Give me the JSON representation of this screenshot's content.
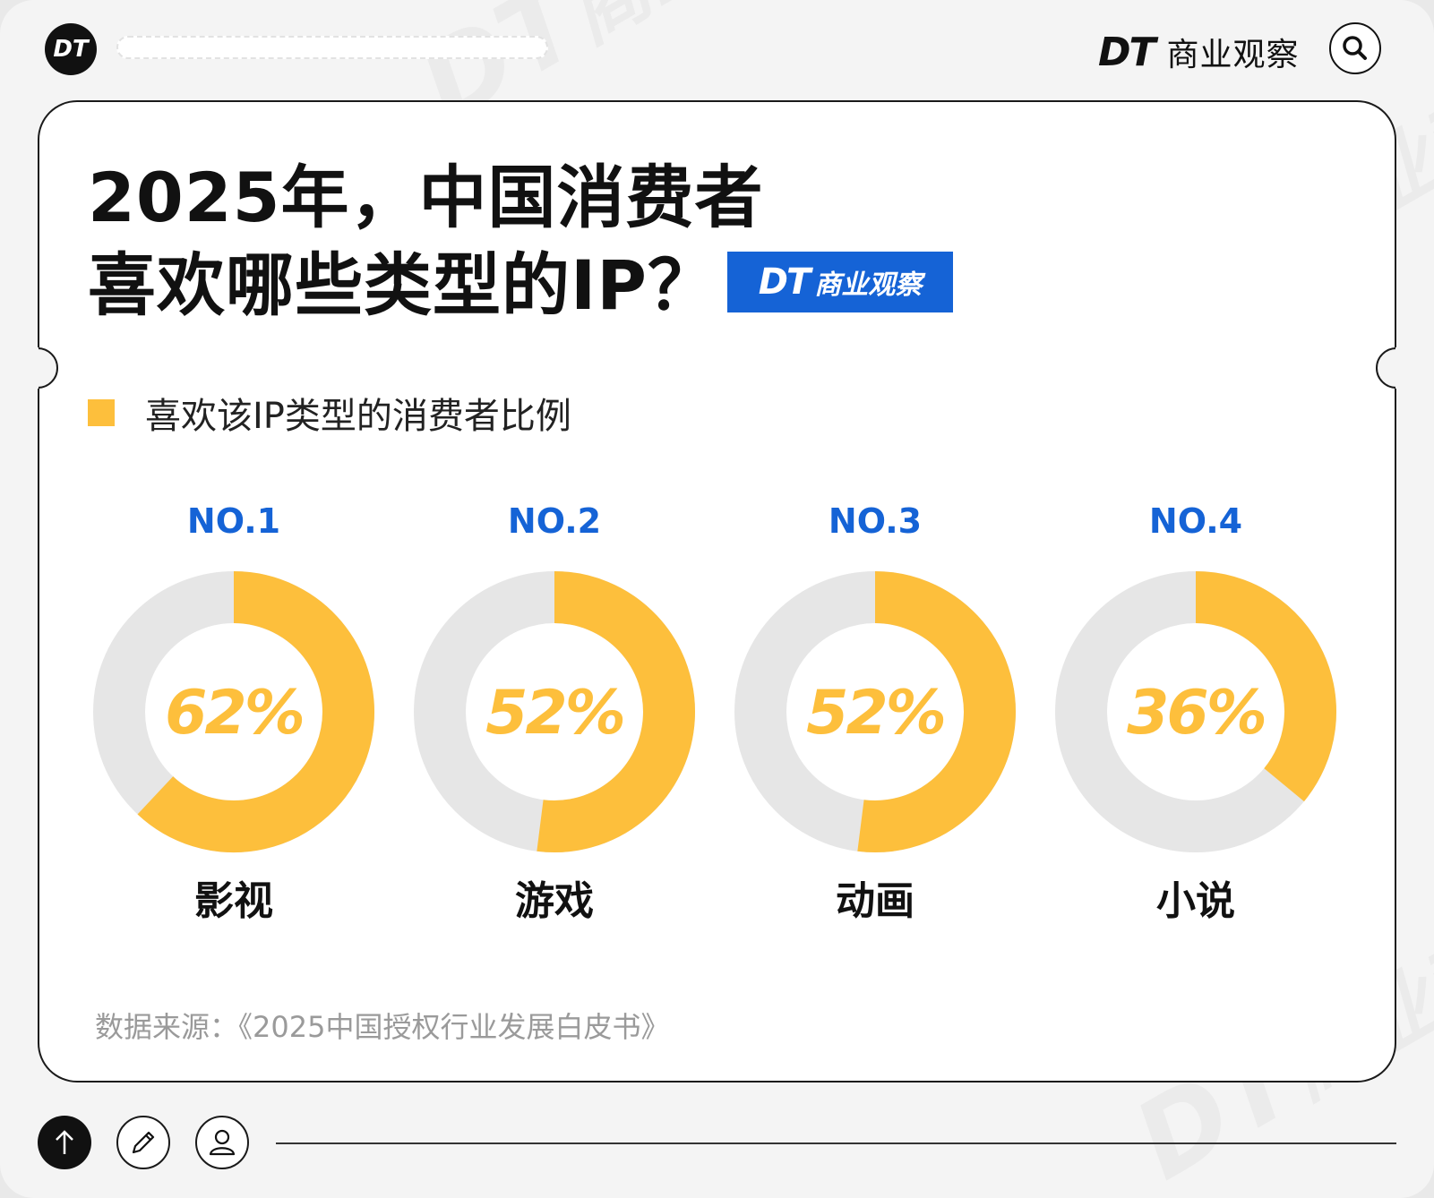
{
  "header": {
    "logo_text": "DT",
    "brand_dt": "DT",
    "brand_cn": "商业观察"
  },
  "title_lines": [
    "2025年，中国消费者",
    "喜欢哪些类型的IP？"
  ],
  "badge": {
    "dt": "DT",
    "cn": "商业观察"
  },
  "legend": {
    "label": "喜欢该IP类型的消费者比例",
    "color": "#fdbf3c"
  },
  "chart_data": {
    "type": "pie",
    "title": "2025年，中国消费者喜欢哪些类型的IP？",
    "series": [
      {
        "name": "喜欢该IP类型的消费者比例",
        "values": [
          62,
          52,
          52,
          36
        ]
      }
    ],
    "categories": [
      "影视",
      "游戏",
      "动画",
      "小说"
    ],
    "ranks": [
      "NO.1",
      "NO.2",
      "NO.3",
      "NO.4"
    ],
    "value_labels": [
      "62%",
      "52%",
      "52%",
      "36%"
    ],
    "unit": "%",
    "max": 100,
    "colors": {
      "filled": "#fdbf3c",
      "remaining": "#e6e6e6",
      "rank": "#1563d6"
    }
  },
  "source": "数据来源：《2025中国授权行业发展白皮书》",
  "footer_buttons": [
    "arrow-up-icon",
    "pencil-icon",
    "user-icon"
  ],
  "watermark": {
    "dt": "DT",
    "cn": "商业观察"
  }
}
